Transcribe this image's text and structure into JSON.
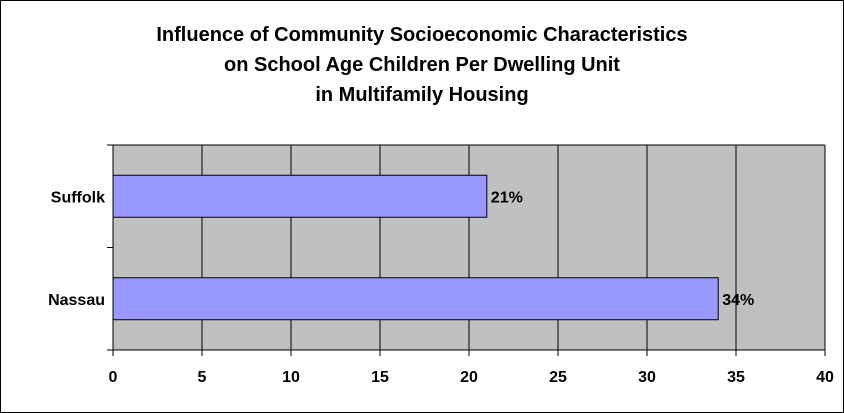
{
  "chart_data": {
    "type": "bar",
    "orientation": "horizontal",
    "title_lines": [
      "Influence of Community Socioeconomic Characteristics",
      "on School Age Children Per Dwelling Unit",
      "in Multifamily Housing"
    ],
    "categories": [
      "Suffolk",
      "Nassau"
    ],
    "values": [
      21,
      34
    ],
    "data_labels": [
      "21%",
      "34%"
    ],
    "xlim": [
      0,
      40
    ],
    "x_ticks": [
      0,
      5,
      10,
      15,
      20,
      25,
      30,
      35,
      40
    ],
    "grid": true,
    "legend": "none",
    "colors": {
      "bar_fill": "#9999ff",
      "bar_stroke": "#000000",
      "plot_background": "#c0c0c0",
      "gridline": "#000000"
    }
  }
}
